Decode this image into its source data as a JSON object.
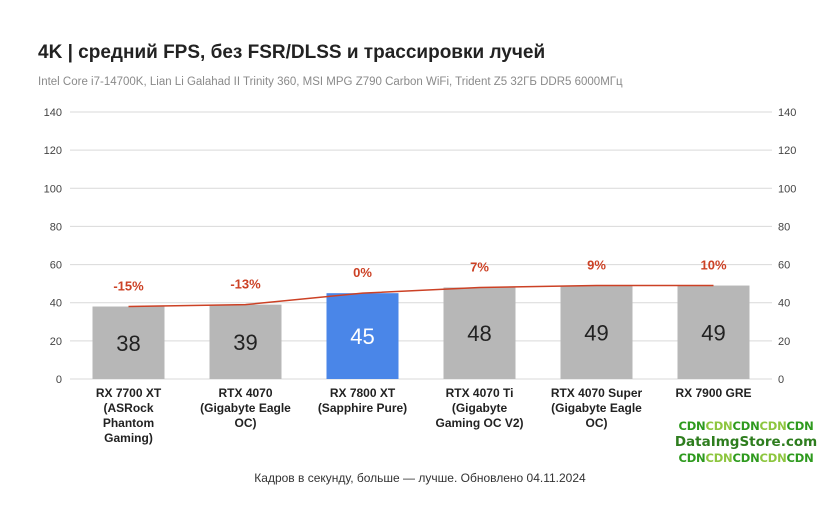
{
  "chart_data": {
    "type": "bar",
    "title": "4K | средний FPS, без FSR/DLSS и трассировки лучей",
    "subtitle": "Intel Core i7-14700K, Lian Li Galahad II Trinity 360, MSI MPG Z790 Carbon WiFi, Trident Z5 32ГБ DDR5 6000МГц",
    "categories": [
      [
        "RX 7700 XT",
        "(ASRock",
        "Phantom",
        "Gaming)"
      ],
      [
        "RTX 4070",
        "(Gigabyte Eagle",
        "OC)"
      ],
      [
        "RX 7800 XT",
        "(Sapphire Pure)"
      ],
      [
        "RTX 4070 Ti",
        "(Gigabyte",
        "Gaming OC V2)"
      ],
      [
        "RTX 4070 Super",
        "(Gigabyte Eagle",
        "OC)"
      ],
      [
        "RX 7900 GRE"
      ]
    ],
    "series": [
      {
        "values": [
          38,
          39,
          45,
          48,
          49,
          49
        ]
      }
    ],
    "line_labels": [
      "-15%",
      "-13%",
      "0%",
      "7%",
      "9%",
      "10%"
    ],
    "ylim": [
      0,
      140
    ],
    "y_ticks": [
      0,
      20,
      40,
      60,
      80,
      100,
      120,
      140
    ],
    "y_tick_labels": [
      "0",
      "20",
      "40",
      "60",
      "80",
      "100",
      "120",
      "140"
    ],
    "highlight_index": 2,
    "grid": true,
    "colors": {
      "bar": "#b7b7b7",
      "highlight": "#4a86e8",
      "line": "#cc4125",
      "grid": "#d9d9d9",
      "value_text": "#222222",
      "value_text_highlight": "#ffffff"
    },
    "xlabel": "Кадров в секунду, больше — лучше. Обновлено 04.11.2024"
  },
  "watermark": {
    "line1": [
      "CDN",
      "CDN",
      "CDN",
      "CDN",
      "CDN"
    ],
    "site": "DataImgStore.com",
    "line3": [
      "CDN",
      "CDN",
      "CDN",
      "CDN",
      "CDN"
    ]
  }
}
